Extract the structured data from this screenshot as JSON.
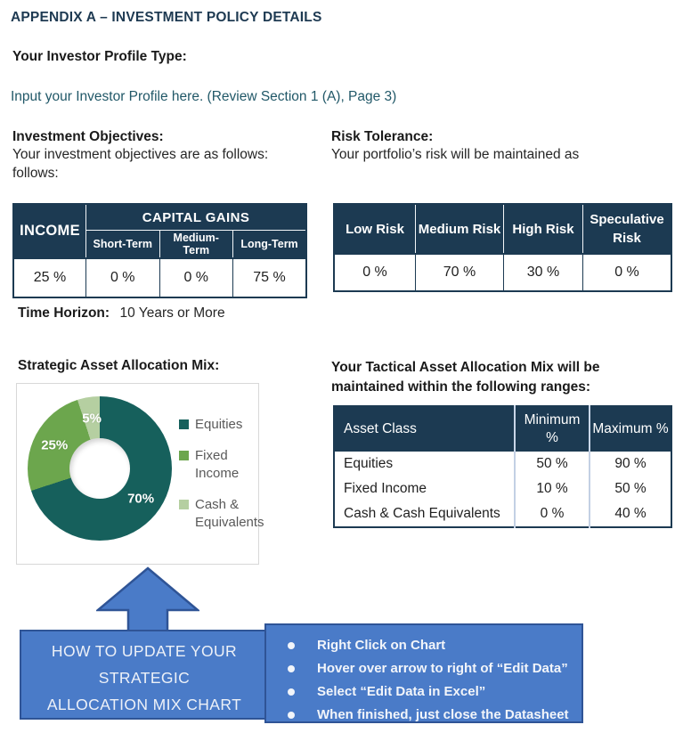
{
  "page": {
    "title": "APPENDIX A – INVESTMENT POLICY DETAILS",
    "investor_profile_heading": "Your Investor Profile Type:",
    "investor_profile_input": "Input your Investor Profile here.  (Review Section 1 (A), Page 3)"
  },
  "objectives": {
    "heading": "Investment Objectives:",
    "line1": "Your investment objectives are as follows:",
    "line2": "follows:",
    "table": {
      "income_label": "INCOME",
      "capital_gains_label": "CAPITAL GAINS",
      "sub_headers": [
        "Short-Term",
        "Medium-Term",
        "Long-Term"
      ],
      "values": [
        "25 %",
        "0 %",
        "0 %",
        "75 %"
      ]
    }
  },
  "risk": {
    "heading": "Risk Tolerance:",
    "line1": "Your portfolio’s risk will be maintained as",
    "table": {
      "headers": [
        "Low Risk",
        "Medium Risk",
        "High Risk",
        "Speculative Risk"
      ],
      "values": [
        "0 %",
        "70 %",
        "30 %",
        "0 %"
      ]
    }
  },
  "time_horizon": {
    "label": "Time Horizon:",
    "value": "10 Years or More"
  },
  "chart_section": {
    "heading": "Strategic Asset Allocation Mix:"
  },
  "chart_data": {
    "type": "pie",
    "subtype": "donut",
    "title": "Strategic Asset Allocation Mix",
    "labels": [
      "Equities",
      "Fixed Income",
      "Cash & Equivalents"
    ],
    "values": [
      70,
      25,
      5
    ],
    "data_labels": [
      "70%",
      "25%",
      "5%"
    ],
    "colors": [
      "#16605C",
      "#6CA64D",
      "#B5CFA1"
    ],
    "legend_position": "right",
    "start_angle_deg": 0,
    "direction": "clockwise",
    "hole_ratio": 0.42
  },
  "tactical": {
    "heading_line1": "Your Tactical Asset Allocation Mix will be",
    "heading_line2": "maintained within the following ranges:",
    "table": {
      "headers": [
        "Asset Class",
        "Minimum %",
        "Maximum %"
      ],
      "rows": [
        [
          "Equities",
          "50 %",
          "90 %"
        ],
        [
          "Fixed Income",
          "10 %",
          "50 %"
        ],
        [
          "Cash & Cash Equivalents",
          "0 %",
          "40 %"
        ]
      ]
    }
  },
  "how_to": {
    "box_title_lines": [
      "HOW TO UPDATE YOUR",
      "STRATEGIC",
      "ALLOCATION MIX CHART"
    ],
    "steps": [
      "Right Click on Chart",
      "Hover over arrow to right of “Edit Data”",
      "Select “Edit Data in Excel”",
      "When finished, just close the Datasheet"
    ]
  },
  "colors": {
    "navy": "#1C3A52",
    "title-navy": "#1E3A52",
    "teal-text": "#215868",
    "legend-text": "#595959",
    "office-blue": "#4A7BC8",
    "office-blue-dark": "#2F5496",
    "equities": "#16605C",
    "fixed-income": "#6CA64D",
    "cash": "#B5CFA1"
  }
}
